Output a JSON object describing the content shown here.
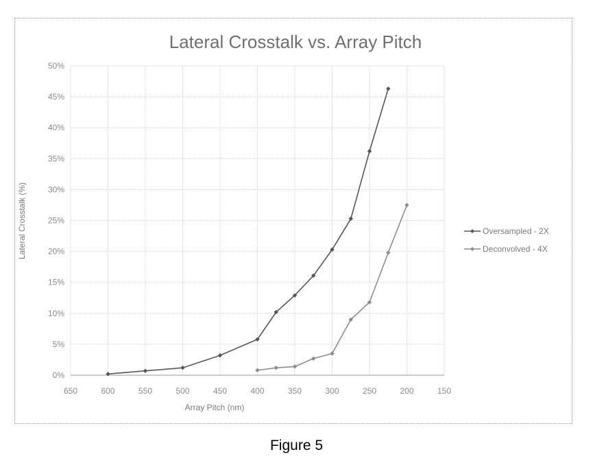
{
  "caption": "Figure 5",
  "chart_data": {
    "type": "line",
    "title": "Lateral Crosstalk vs. Array Pitch",
    "xlabel": "Array Pitch (nm)",
    "ylabel": "Lateral Crosstalk (%)",
    "xlim": [
      650,
      150
    ],
    "x_reversed": true,
    "ylim": [
      0,
      50
    ],
    "x_ticks": [
      650,
      600,
      550,
      500,
      450,
      400,
      350,
      300,
      250,
      200,
      150
    ],
    "x_tick_labels": [
      "650",
      "600",
      "550",
      "500",
      "450",
      "400",
      "350",
      "300",
      "250",
      "200",
      "150"
    ],
    "y_ticks": [
      0,
      5,
      10,
      15,
      20,
      25,
      30,
      35,
      40,
      45,
      50
    ],
    "y_tick_labels": [
      "0%",
      "5%",
      "10%",
      "15%",
      "20%",
      "25%",
      "30%",
      "35%",
      "40%",
      "45%",
      "50%"
    ],
    "grid": true,
    "legend_position": "right",
    "series": [
      {
        "name": "Oversampled - 2X",
        "color": "#555555",
        "marker": "diamond",
        "x": [
          600,
          550,
          500,
          450,
          400,
          375,
          350,
          325,
          300,
          275,
          250,
          225
        ],
        "y": [
          0.2,
          0.7,
          1.2,
          3.2,
          5.8,
          10.2,
          12.9,
          16.1,
          20.3,
          25.3,
          36.2,
          46.3
        ]
      },
      {
        "name": "Deconvolved - 4X",
        "color": "#8c8c8c",
        "marker": "diamond",
        "x": [
          400,
          375,
          350,
          325,
          300,
          275,
          250,
          225,
          200
        ],
        "y": [
          0.8,
          1.2,
          1.4,
          2.7,
          3.5,
          9.0,
          11.8,
          19.8,
          27.5
        ]
      }
    ]
  }
}
